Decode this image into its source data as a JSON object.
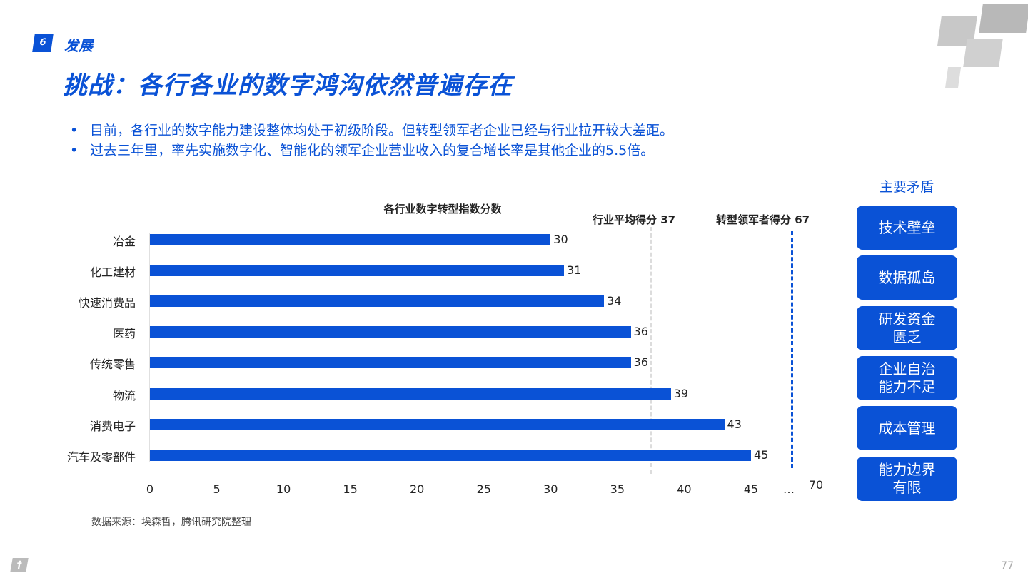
{
  "header": {
    "section_number": "6",
    "section_label": "发展",
    "title": "挑战：各行各业的数字鸿沟依然普遍存在"
  },
  "bullets": [
    "目前，各行业的数字能力建设整体均处于初级阶段。但转型领军者企业已经与行业拉开较大差距。",
    "过去三年里，率先实施数字化、智能化的领军企业营业收入的复合增长率是其他企业的5.5倍。"
  ],
  "chart_data": {
    "type": "bar",
    "orientation": "horizontal",
    "title": "各行业数字转型指数分数",
    "categories": [
      "冶金",
      "化工建材",
      "快速消费品",
      "医药",
      "传统零售",
      "物流",
      "消费电子",
      "汽车及零部件"
    ],
    "values": [
      30,
      31,
      34,
      36,
      36,
      39,
      43,
      45
    ],
    "x_ticks": [
      "0",
      "5",
      "10",
      "15",
      "20",
      "25",
      "30",
      "35",
      "40",
      "45",
      "…",
      "70"
    ],
    "xlim": [
      0,
      70
    ],
    "axis_break": "…",
    "reference_lines": [
      {
        "label": "行业平均得分 37",
        "value": 37,
        "color": "#dddddd"
      },
      {
        "label": "转型领军者得分 67",
        "value": 67,
        "color": "#0a52d6"
      }
    ],
    "bar_color": "#0a52d6",
    "grid": false
  },
  "side": {
    "title": "主要矛盾",
    "items": [
      "技术壁垒",
      "数据孤岛",
      "研发资金\n匮乏",
      "企业自治\n能力不足",
      "成本管理",
      "能力边界\n有限"
    ]
  },
  "source": "数据来源：埃森哲，腾讯研究院整理",
  "page_number": "77"
}
